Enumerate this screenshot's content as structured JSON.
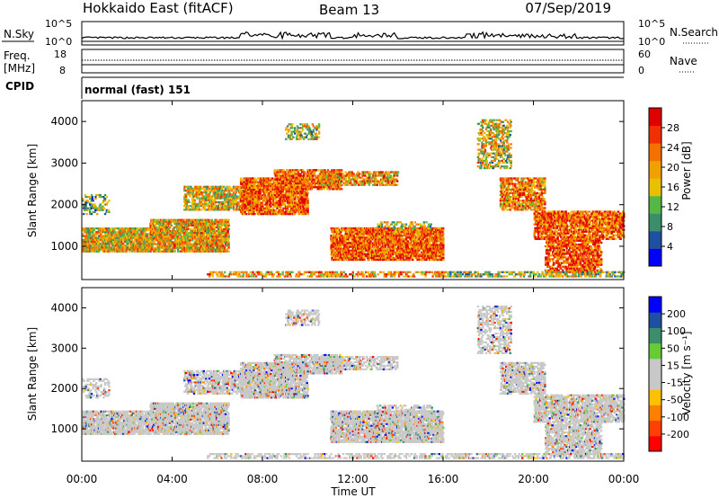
{
  "header": {
    "station": "Hokkaido East (fitACF)",
    "beam": "Beam 13",
    "date": "07/Sep/2019"
  },
  "panels": {
    "nsky": {
      "label": "N.Sky",
      "ticks": [
        "10^5",
        "10^0"
      ],
      "right_ticks": [
        "10^5",
        "10^0"
      ],
      "right_label": "N.Search"
    },
    "freq": {
      "label_top": "Freq.",
      "label_unit": "[MHz]",
      "ticks": [
        "18",
        "8"
      ],
      "right_ticks": [
        "60",
        "0"
      ],
      "right_label": "Nave"
    },
    "cpid": {
      "label": "CPID",
      "program": "normal (fast) 151"
    }
  },
  "chart_data": [
    {
      "type": "heatmap",
      "name": "power",
      "ylabel": "Slant Range [km]",
      "colorbar_label": "Power [dB]",
      "colorbar_ticks": [
        "28",
        "24",
        "20",
        "16",
        "12",
        "8",
        "4"
      ],
      "colors": [
        "#0000ff",
        "#1f4fa0",
        "#3a8f6a",
        "#55b845",
        "#e8c000",
        "#f2a000",
        "#f47000",
        "#f03000",
        "#e00000"
      ],
      "y_ticks": [
        1000,
        2000,
        3000,
        4000
      ],
      "ylim": [
        200,
        4500
      ],
      "x_ticks": [
        "00:00",
        "04:00",
        "08:00",
        "12:00",
        "16:00",
        "20:00",
        "00:00"
      ],
      "xlim_hours": [
        0,
        24
      ]
    },
    {
      "type": "heatmap",
      "name": "velocity",
      "ylabel": "Slant Range [km]",
      "colorbar_label": "Velocity [m s⁻¹]",
      "colorbar_ticks": [
        "200",
        "100",
        "50",
        "15",
        "-15",
        "-50",
        "-100",
        "-200"
      ],
      "colors": [
        "#ff0000",
        "#ff4000",
        "#ff8000",
        "#ffc000",
        "#c8c8c8",
        "#c8c8c8",
        "#66cc33",
        "#3a8f6a",
        "#1f4fa0",
        "#0000ff"
      ],
      "y_ticks": [
        1000,
        2000,
        3000,
        4000
      ],
      "ylim": [
        200,
        4500
      ],
      "x_ticks": [
        "00:00",
        "04:00",
        "08:00",
        "12:00",
        "16:00",
        "20:00",
        "00:00"
      ],
      "xlabel": "Time UT",
      "xlim_hours": [
        0,
        24
      ]
    }
  ]
}
